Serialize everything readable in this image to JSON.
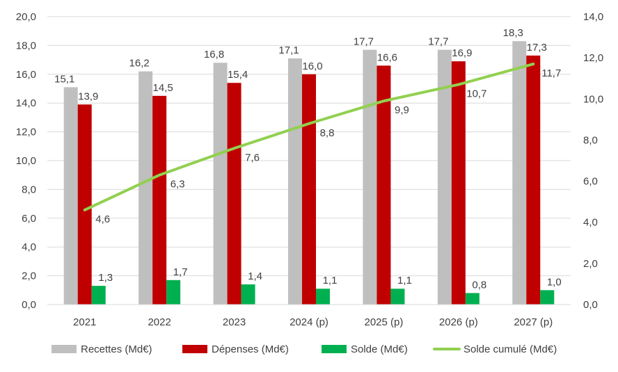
{
  "chart_data": {
    "type": "bar",
    "categories": [
      "2021",
      "2022",
      "2023",
      "2024 (p)",
      "2025 (p)",
      "2026 (p)",
      "2027 (p)"
    ],
    "series": [
      {
        "name": "Recettes (Md€)",
        "type": "bar",
        "axis": "left",
        "color": "#bfbfbf",
        "values": [
          15.1,
          16.2,
          16.8,
          17.1,
          17.7,
          17.7,
          18.3
        ],
        "labels": [
          "15,1",
          "16,2",
          "16,8",
          "17,1",
          "17,7",
          "17,7",
          "18,3"
        ]
      },
      {
        "name": "Dépenses (Md€)",
        "type": "bar",
        "axis": "left",
        "color": "#c00000",
        "values": [
          13.9,
          14.5,
          15.4,
          16.0,
          16.6,
          16.9,
          17.3
        ],
        "labels": [
          "13,9",
          "14,5",
          "15,4",
          "16,0",
          "16,6",
          "16,9",
          "17,3"
        ]
      },
      {
        "name": "Solde (Md€)",
        "type": "bar",
        "axis": "left",
        "color": "#00b050",
        "values": [
          1.3,
          1.7,
          1.4,
          1.1,
          1.1,
          0.8,
          1.0
        ],
        "labels": [
          "1,3",
          "1,7",
          "1,4",
          "1,1",
          "1,1",
          "0,8",
          "1,0"
        ]
      },
      {
        "name": "Solde cumulé (Md€)",
        "type": "line",
        "axis": "right",
        "color": "#92d050",
        "values": [
          4.6,
          6.3,
          7.6,
          8.8,
          9.9,
          10.7,
          11.7
        ],
        "labels": [
          "4,6",
          "6,3",
          "7,6",
          "8,8",
          "9,9",
          "10,7",
          "11,7"
        ]
      }
    ],
    "y_left": {
      "min": 0,
      "max": 20,
      "step": 2,
      "tick_labels": [
        "0,0",
        "2,0",
        "4,0",
        "6,0",
        "8,0",
        "10,0",
        "12,0",
        "14,0",
        "16,0",
        "18,0",
        "20,0"
      ]
    },
    "y_right": {
      "min": 0,
      "max": 14,
      "step": 2,
      "tick_labels": [
        "0,0",
        "2,0",
        "4,0",
        "6,0",
        "8,0",
        "10,0",
        "12,0",
        "14,0"
      ]
    },
    "grid": true,
    "legend_position": "bottom",
    "title": "",
    "xlabel": "",
    "ylabel": ""
  }
}
